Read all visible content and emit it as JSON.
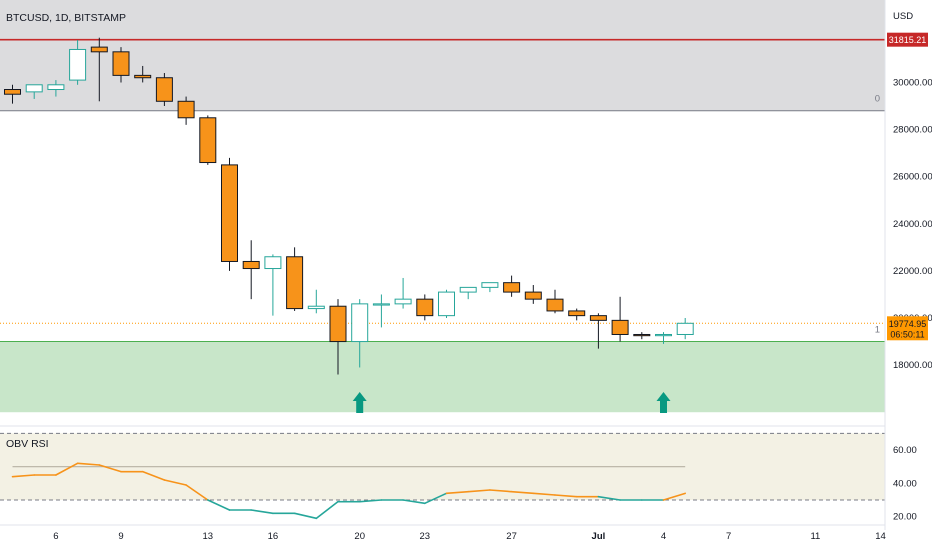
{
  "header": {
    "symbol_line": "BTCUSD, 1D, BITSTAMP",
    "currency": "USD"
  },
  "chart_data": [
    {
      "type": "candlestick",
      "symbol": "BTCUSD",
      "interval": "1D",
      "exchange": "BITSTAMP",
      "y_unit": "USD",
      "ylim": [
        15500,
        33500
      ],
      "y_ticks": [
        {
          "value": 18000,
          "label": "18000.00"
        },
        {
          "value": 20000,
          "label": "20000.00"
        },
        {
          "value": 22000,
          "label": "22000.00"
        },
        {
          "value": 24000,
          "label": "24000.00"
        },
        {
          "value": 26000,
          "label": "26000.00"
        },
        {
          "value": 28000,
          "label": "28000.00"
        },
        {
          "value": 30000,
          "label": "30000.00"
        }
      ],
      "x_ticks": [
        {
          "index": 2,
          "label": "6"
        },
        {
          "index": 5,
          "label": "9"
        },
        {
          "index": 9,
          "label": "13"
        },
        {
          "index": 12,
          "label": "16"
        },
        {
          "index": 16,
          "label": "20"
        },
        {
          "index": 19,
          "label": "23"
        },
        {
          "index": 23,
          "label": "27"
        },
        {
          "index": 27,
          "label": "Jul"
        },
        {
          "index": 30,
          "label": "4"
        },
        {
          "index": 33,
          "label": "7"
        },
        {
          "index": 37,
          "label": "11"
        },
        {
          "index": 40,
          "label": "14"
        }
      ],
      "candles": [
        {
          "o": 29700,
          "h": 29900,
          "l": 29100,
          "c": 29500
        },
        {
          "o": 29600,
          "h": 29800,
          "l": 29300,
          "c": 29900
        },
        {
          "o": 29700,
          "h": 30100,
          "l": 29400,
          "c": 29900
        },
        {
          "o": 30100,
          "h": 31800,
          "l": 29900,
          "c": 31400
        },
        {
          "o": 31500,
          "h": 31900,
          "l": 29200,
          "c": 31300
        },
        {
          "o": 31300,
          "h": 31500,
          "l": 30000,
          "c": 30300
        },
        {
          "o": 30300,
          "h": 30700,
          "l": 30000,
          "c": 30200
        },
        {
          "o": 30200,
          "h": 30400,
          "l": 29000,
          "c": 29200
        },
        {
          "o": 29200,
          "h": 29400,
          "l": 28200,
          "c": 28500
        },
        {
          "o": 28500,
          "h": 28600,
          "l": 26500,
          "c": 26600
        },
        {
          "o": 26500,
          "h": 26800,
          "l": 22000,
          "c": 22400
        },
        {
          "o": 22400,
          "h": 23300,
          "l": 20800,
          "c": 22100
        },
        {
          "o": 22100,
          "h": 22700,
          "l": 20100,
          "c": 22600
        },
        {
          "o": 22600,
          "h": 23000,
          "l": 20300,
          "c": 20400
        },
        {
          "o": 20400,
          "h": 21200,
          "l": 20200,
          "c": 20500
        },
        {
          "o": 20500,
          "h": 20800,
          "l": 17600,
          "c": 19000
        },
        {
          "o": 19000,
          "h": 20800,
          "l": 17900,
          "c": 20600
        },
        {
          "o": 20600,
          "h": 21000,
          "l": 19600,
          "c": 20600
        },
        {
          "o": 20600,
          "h": 21700,
          "l": 20400,
          "c": 20800
        },
        {
          "o": 20800,
          "h": 21000,
          "l": 19900,
          "c": 20100
        },
        {
          "o": 20100,
          "h": 21200,
          "l": 20000,
          "c": 21100
        },
        {
          "o": 21100,
          "h": 21300,
          "l": 20800,
          "c": 21300
        },
        {
          "o": 21300,
          "h": 21500,
          "l": 21100,
          "c": 21500
        },
        {
          "o": 21500,
          "h": 21800,
          "l": 20900,
          "c": 21100
        },
        {
          "o": 21100,
          "h": 21400,
          "l": 20600,
          "c": 20800
        },
        {
          "o": 20800,
          "h": 21200,
          "l": 20200,
          "c": 20300
        },
        {
          "o": 20300,
          "h": 20400,
          "l": 19900,
          "c": 20100
        },
        {
          "o": 20100,
          "h": 20200,
          "l": 18700,
          "c": 19900
        },
        {
          "o": 19900,
          "h": 20900,
          "l": 19000,
          "c": 19300
        },
        {
          "o": 19300,
          "h": 19400,
          "l": 19100,
          "c": 19250
        },
        {
          "o": 19250,
          "h": 19400,
          "l": 18900,
          "c": 19300
        },
        {
          "o": 19300,
          "h": 20000,
          "l": 19100,
          "c": 19775
        }
      ],
      "bands": [
        {
          "label": "0",
          "from": 28800,
          "to": 33500,
          "color": "#dcdcde",
          "line": 28800,
          "line_color": "#787b86"
        },
        {
          "label": "1",
          "from": 16000,
          "to": 19000,
          "color": "#c8e6c9",
          "line": 19000,
          "line_color": "#4caf50"
        }
      ],
      "resistance_line": {
        "value": 31815.21,
        "label": "31815.21",
        "color": "#c62828"
      },
      "last_price": {
        "value": 19774.95,
        "label": "19774.95",
        "countdown": "06:50:11",
        "color": "#ff9800"
      },
      "signal_arrows": [
        {
          "index": 16
        },
        {
          "index": 30
        }
      ],
      "colors": {
        "up": "#26a69a",
        "down": "#131722",
        "down_fill": "#f7931a",
        "arrow": "#089981"
      }
    },
    {
      "type": "line",
      "title": "OBV RSI",
      "ylim": [
        15,
        72
      ],
      "y_ticks": [
        {
          "value": 20,
          "label": "20.00"
        },
        {
          "value": 40,
          "label": "40.00"
        },
        {
          "value": 60,
          "label": "60.00"
        }
      ],
      "levels": [
        30,
        70
      ],
      "signal_level": 50,
      "series": [
        {
          "values": [
            44,
            45,
            45,
            52,
            51,
            47,
            47,
            42,
            39,
            30,
            24,
            24,
            22,
            22,
            19,
            29,
            29,
            30,
            30,
            28,
            34,
            35,
            36,
            35,
            34,
            33,
            32,
            32,
            30,
            30,
            30,
            34
          ]
        }
      ],
      "colors": {
        "above": "#f7931a",
        "below": "#26a69a",
        "band_fill": "#f3f1e4",
        "signal": "#b7b1a3"
      }
    }
  ]
}
